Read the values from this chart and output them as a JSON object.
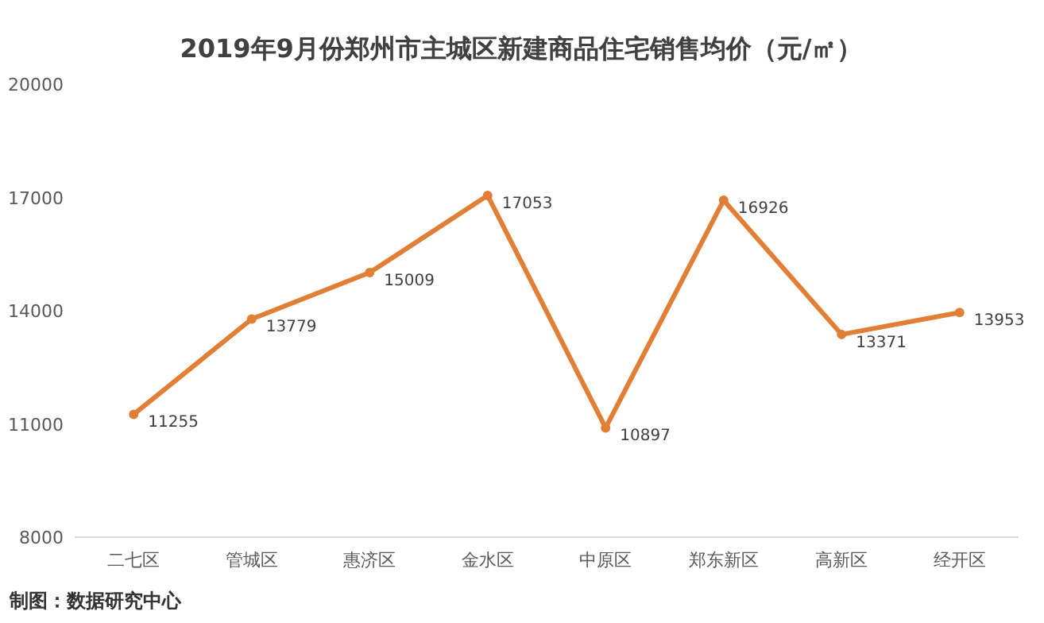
{
  "chart_data": {
    "type": "line",
    "title": "2019年9月份郑州市主城区新建商品住宅销售均价（元/㎡）",
    "categories": [
      "二七区",
      "管城区",
      "惠济区",
      "金水区",
      "中原区",
      "郑东新区",
      "高新区",
      "经开区"
    ],
    "values": [
      11255,
      13779,
      15009,
      17053,
      10897,
      16926,
      13371,
      13953
    ],
    "color": "#e07f35",
    "marker": "circle",
    "line_style": "solid",
    "data_labels": true,
    "ylim": [
      8000,
      20000
    ],
    "yticks": [
      8000,
      11000,
      14000,
      17000,
      20000
    ],
    "annotations": [
      "制图：数据研究中心"
    ]
  }
}
